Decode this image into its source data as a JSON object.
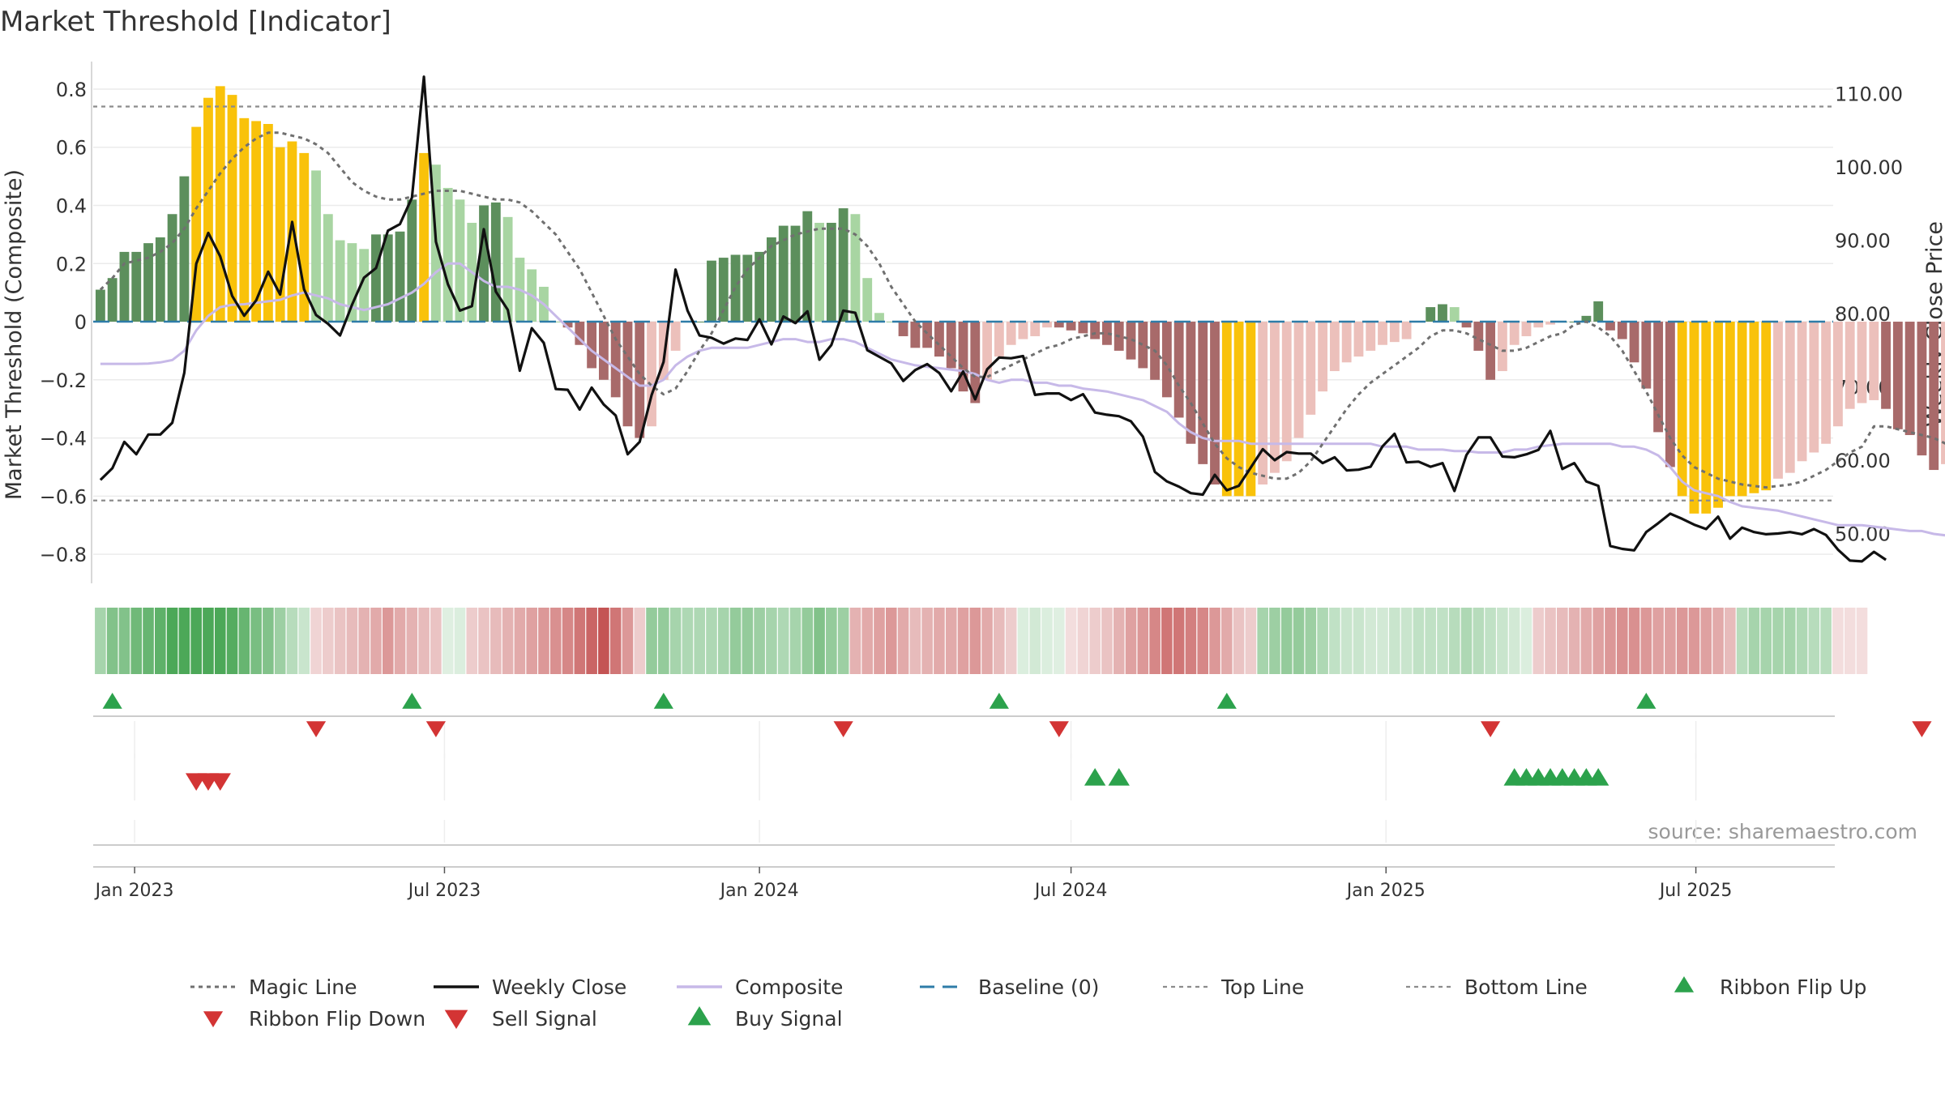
{
  "chart_data": {
    "type": "bar",
    "title": "Market Threshold [Indicator]",
    "ylabel": "Market Threshold (Composite)",
    "y2label": "Weekly Close Price",
    "source": "source: sharemaestro.com",
    "ylim": [
      -0.9,
      0.85
    ],
    "y2lim": [
      43.2,
      112.6
    ],
    "yticks": [
      {
        "v": 0.8,
        "t": "0.8"
      },
      {
        "v": 0.6,
        "t": "0.6"
      },
      {
        "v": 0.4,
        "t": "0.4"
      },
      {
        "v": 0.2,
        "t": "0.2"
      },
      {
        "v": 0,
        "t": "0"
      },
      {
        "v": -0.2,
        "t": "−0.2"
      },
      {
        "v": -0.4,
        "t": "−0.4"
      },
      {
        "v": -0.6,
        "t": "−0.6"
      },
      {
        "v": -0.8,
        "t": "−0.8"
      }
    ],
    "y2ticks": [
      {
        "v": 110,
        "t": "110.00"
      },
      {
        "v": 100,
        "t": "100.00"
      },
      {
        "v": 90,
        "t": "90.00"
      },
      {
        "v": 80,
        "t": "80.00"
      },
      {
        "v": 70,
        "t": "70.00"
      },
      {
        "v": 60,
        "t": "60.00"
      },
      {
        "v": 50,
        "t": "50.00"
      }
    ],
    "x_start": "2022-12-12",
    "x_end": "2025-09-15",
    "xticks": [
      {
        "date": "2023-01-01",
        "label": "Jan 2023"
      },
      {
        "date": "2023-07-01",
        "label": "Jul 2023"
      },
      {
        "date": "2024-01-01",
        "label": "Jan 2024"
      },
      {
        "date": "2024-07-01",
        "label": "Jul 2024"
      },
      {
        "date": "2025-01-01",
        "label": "Jan 2025"
      },
      {
        "date": "2025-07-01",
        "label": "Jul 2025"
      }
    ],
    "lines": {
      "top": 0.74,
      "bottom": -0.615,
      "baseline": 0
    },
    "colors": {
      "green_dark": "#5c8f5c",
      "green_light": "#a8d5a2",
      "red_dark": "#a86a6a",
      "red_light": "#ecc0bb",
      "extreme": "#f9c20a",
      "close": "#111111",
      "composite": "#c7b9e8",
      "magic": "#707070",
      "baseline": "#2e7ca8",
      "thresh": "#8c8c8c",
      "signal_up": "#2ca24c",
      "signal_down": "#d33434",
      "ribbon_up": "#2ca24c",
      "ribbon_down": "#d33434"
    },
    "composite_bars": [
      0.11,
      0.15,
      0.24,
      0.24,
      0.27,
      0.29,
      0.37,
      0.5,
      0.67,
      0.77,
      0.81,
      0.78,
      0.7,
      0.69,
      0.68,
      0.6,
      0.62,
      0.58,
      0.52,
      0.37,
      0.28,
      0.27,
      0.25,
      0.3,
      0.3,
      0.31,
      0.42,
      0.58,
      0.54,
      0.46,
      0.42,
      0.34,
      0.4,
      0.41,
      0.36,
      0.22,
      0.18,
      0.12,
      0.0,
      -0.02,
      -0.08,
      -0.16,
      -0.2,
      -0.26,
      -0.36,
      -0.4,
      -0.36,
      -0.2,
      -0.1,
      0.0,
      0.0,
      0.21,
      0.22,
      0.23,
      0.23,
      0.24,
      0.29,
      0.33,
      0.33,
      0.38,
      0.34,
      0.34,
      0.39,
      0.37,
      0.15,
      0.03,
      0.0,
      -0.05,
      -0.09,
      -0.09,
      -0.12,
      -0.16,
      -0.24,
      -0.28,
      -0.2,
      -0.12,
      -0.08,
      -0.06,
      -0.05,
      -0.02,
      -0.02,
      -0.03,
      -0.04,
      -0.06,
      -0.08,
      -0.1,
      -0.13,
      -0.16,
      -0.2,
      -0.26,
      -0.33,
      -0.42,
      -0.49,
      -0.56,
      -0.6,
      -0.6,
      -0.6,
      -0.56,
      -0.52,
      -0.48,
      -0.4,
      -0.32,
      -0.24,
      -0.17,
      -0.14,
      -0.12,
      -0.1,
      -0.08,
      -0.07,
      -0.06,
      0.0,
      0.05,
      0.06,
      0.05,
      -0.02,
      -0.1,
      -0.2,
      -0.17,
      -0.08,
      -0.05,
      -0.02,
      -0.01,
      0.0,
      0.0,
      0.02,
      0.07,
      -0.03,
      -0.06,
      -0.14,
      -0.23,
      -0.38,
      -0.5,
      -0.6,
      -0.66,
      -0.66,
      -0.64,
      -0.6,
      -0.6,
      -0.59,
      -0.58,
      -0.54,
      -0.52,
      -0.48,
      -0.45,
      -0.42,
      -0.36,
      -0.3,
      -0.28,
      -0.27,
      -0.3,
      -0.37,
      -0.39,
      -0.46,
      -0.51,
      -0.49,
      -0.54
    ],
    "composite_line": [
      -0.145,
      -0.145,
      -0.145,
      -0.145,
      -0.144,
      -0.14,
      -0.132,
      -0.1,
      -0.03,
      0.02,
      0.05,
      0.058,
      0.06,
      0.065,
      0.07,
      0.075,
      0.09,
      0.1,
      0.09,
      0.08,
      0.06,
      0.05,
      0.04,
      0.05,
      0.06,
      0.08,
      0.1,
      0.13,
      0.17,
      0.2,
      0.2,
      0.17,
      0.14,
      0.12,
      0.12,
      0.11,
      0.09,
      0.06,
      0.02,
      -0.02,
      -0.06,
      -0.1,
      -0.13,
      -0.16,
      -0.19,
      -0.22,
      -0.22,
      -0.2,
      -0.15,
      -0.12,
      -0.1,
      -0.09,
      -0.09,
      -0.09,
      -0.09,
      -0.08,
      -0.07,
      -0.06,
      -0.06,
      -0.07,
      -0.07,
      -0.06,
      -0.06,
      -0.07,
      -0.09,
      -0.11,
      -0.13,
      -0.14,
      -0.15,
      -0.155,
      -0.16,
      -0.165,
      -0.17,
      -0.18,
      -0.2,
      -0.21,
      -0.2,
      -0.2,
      -0.21,
      -0.21,
      -0.22,
      -0.22,
      -0.23,
      -0.235,
      -0.24,
      -0.25,
      -0.26,
      -0.27,
      -0.29,
      -0.31,
      -0.35,
      -0.38,
      -0.4,
      -0.41,
      -0.41,
      -0.41,
      -0.42,
      -0.42,
      -0.42,
      -0.42,
      -0.42,
      -0.42,
      -0.42,
      -0.42,
      -0.42,
      -0.42,
      -0.42,
      -0.43,
      -0.43,
      -0.43,
      -0.44,
      -0.44,
      -0.44,
      -0.445,
      -0.445,
      -0.45,
      -0.45,
      -0.45,
      -0.44,
      -0.44,
      -0.43,
      -0.425,
      -0.42,
      -0.42,
      -0.42,
      -0.42,
      -0.42,
      -0.43,
      -0.43,
      -0.44,
      -0.46,
      -0.5,
      -0.55,
      -0.58,
      -0.59,
      -0.6,
      -0.62,
      -0.635,
      -0.64,
      -0.645,
      -0.65,
      -0.66,
      -0.67,
      -0.68,
      -0.69,
      -0.7,
      -0.7,
      -0.7,
      -0.705,
      -0.71,
      -0.715,
      -0.72,
      -0.72,
      -0.73,
      -0.735,
      -0.74
    ],
    "magic_line": [
      0.11,
      0.15,
      0.2,
      0.21,
      0.22,
      0.24,
      0.27,
      0.32,
      0.39,
      0.45,
      0.51,
      0.56,
      0.6,
      0.63,
      0.65,
      0.65,
      0.64,
      0.63,
      0.61,
      0.58,
      0.53,
      0.48,
      0.45,
      0.43,
      0.42,
      0.42,
      0.43,
      0.44,
      0.45,
      0.45,
      0.45,
      0.44,
      0.43,
      0.42,
      0.42,
      0.41,
      0.38,
      0.34,
      0.3,
      0.24,
      0.18,
      0.1,
      0.02,
      -0.06,
      -0.12,
      -0.18,
      -0.22,
      -0.25,
      -0.23,
      -0.17,
      -0.1,
      -0.04,
      0.04,
      0.12,
      0.18,
      0.22,
      0.26,
      0.28,
      0.3,
      0.31,
      0.32,
      0.32,
      0.32,
      0.3,
      0.26,
      0.2,
      0.12,
      0.06,
      0.0,
      -0.04,
      -0.08,
      -0.12,
      -0.16,
      -0.19,
      -0.19,
      -0.17,
      -0.15,
      -0.13,
      -0.11,
      -0.09,
      -0.08,
      -0.06,
      -0.05,
      -0.04,
      -0.04,
      -0.05,
      -0.06,
      -0.08,
      -0.1,
      -0.15,
      -0.22,
      -0.28,
      -0.35,
      -0.42,
      -0.47,
      -0.5,
      -0.52,
      -0.53,
      -0.54,
      -0.54,
      -0.52,
      -0.48,
      -0.42,
      -0.36,
      -0.3,
      -0.25,
      -0.21,
      -0.18,
      -0.15,
      -0.12,
      -0.09,
      -0.05,
      -0.03,
      -0.03,
      -0.04,
      -0.06,
      -0.08,
      -0.1,
      -0.1,
      -0.09,
      -0.07,
      -0.05,
      -0.04,
      -0.01,
      0.0,
      -0.02,
      -0.05,
      -0.1,
      -0.17,
      -0.24,
      -0.32,
      -0.4,
      -0.46,
      -0.5,
      -0.52,
      -0.54,
      -0.55,
      -0.56,
      -0.565,
      -0.57,
      -0.565,
      -0.56,
      -0.55,
      -0.53,
      -0.51,
      -0.48,
      -0.45,
      -0.43,
      -0.36,
      -0.36,
      -0.37,
      -0.38,
      -0.39,
      -0.4,
      -0.42,
      -0.43
    ],
    "weekly_close": [
      57.3,
      58.9,
      62.5,
      60.8,
      63.5,
      63.5,
      65.1,
      71.9,
      86.8,
      91.0,
      87.8,
      82.4,
      79.7,
      81.8,
      85.7,
      82.6,
      92.5,
      83.3,
      79.8,
      78.6,
      77.0,
      81.2,
      84.9,
      86.2,
      91.3,
      92.2,
      95.8,
      112.3,
      89.8,
      84.0,
      80.4,
      81.0,
      91.5,
      83.0,
      80.5,
      72.2,
      78.0,
      76.0,
      69.7,
      69.6,
      66.9,
      69.9,
      67.6,
      66.1,
      60.8,
      62.5,
      68.9,
      73.4,
      86.0,
      80.4,
      77.0,
      76.7,
      75.9,
      76.6,
      76.4,
      79.2,
      75.8,
      79.6,
      78.7,
      80.3,
      73.7,
      75.7,
      80.4,
      80.1,
      75.0,
      74.1,
      73.2,
      70.8,
      72.3,
      73.1,
      71.9,
      69.4,
      72.1,
      68.3,
      72.4,
      74.0,
      73.9,
      74.2,
      68.9,
      69.1,
      69.1,
      68.2,
      69.0,
      66.5,
      66.2,
      66.0,
      65.3,
      63.2,
      58.4,
      57.1,
      56.4,
      55.5,
      55.3,
      58.0,
      55.9,
      56.5,
      59.0,
      61.5,
      60.0,
      61.1,
      60.9,
      60.9,
      59.6,
      60.4,
      58.6,
      58.7,
      59.1,
      61.9,
      63.6,
      59.7,
      59.8,
      59.1,
      59.6,
      55.8,
      60.7,
      63.1,
      63.1,
      60.5,
      60.4,
      60.8,
      61.4,
      64.0,
      58.8,
      59.6,
      57.1,
      56.5,
      48.3,
      47.9,
      47.7,
      50.2,
      51.4,
      52.7,
      52.0,
      51.2,
      50.6,
      52.3,
      49.3,
      50.8,
      50.2,
      49.9,
      50.0,
      50.2,
      49.9,
      50.6,
      49.8,
      47.8,
      46.3,
      46.2,
      47.5,
      46.4
    ],
    "ribbon": [
      0.5,
      0.7,
      0.7,
      0.8,
      0.85,
      0.9,
      1.0,
      1.0,
      1.0,
      1.0,
      1.0,
      0.95,
      0.85,
      0.75,
      0.7,
      0.55,
      0.4,
      0.3,
      -0.25,
      -0.3,
      -0.35,
      -0.4,
      -0.45,
      -0.5,
      -0.6,
      -0.5,
      -0.45,
      -0.4,
      -0.35,
      0.15,
      0.2,
      -0.3,
      -0.35,
      -0.4,
      -0.45,
      -0.5,
      -0.55,
      -0.6,
      -0.65,
      -0.7,
      -0.8,
      -0.9,
      -1.0,
      -0.8,
      -0.6,
      -0.3,
      0.6,
      0.6,
      0.5,
      0.45,
      0.45,
      0.45,
      0.5,
      0.6,
      0.6,
      0.55,
      0.5,
      0.45,
      0.5,
      0.6,
      0.7,
      0.6,
      0.55,
      -0.45,
      -0.5,
      -0.55,
      -0.6,
      -0.5,
      -0.4,
      -0.45,
      -0.5,
      -0.5,
      -0.55,
      -0.6,
      -0.5,
      -0.4,
      -0.3,
      0.2,
      0.25,
      0.2,
      0.15,
      -0.2,
      -0.25,
      -0.3,
      -0.35,
      -0.45,
      -0.55,
      -0.6,
      -0.7,
      -0.8,
      -0.8,
      -0.75,
      -0.7,
      -0.6,
      -0.5,
      -0.35,
      -0.3,
      0.5,
      0.55,
      0.6,
      0.6,
      0.55,
      0.45,
      0.35,
      0.3,
      0.3,
      0.25,
      0.25,
      0.3,
      0.3,
      0.35,
      0.35,
      0.35,
      0.4,
      0.45,
      0.4,
      0.35,
      0.3,
      0.25,
      0.2,
      -0.3,
      -0.35,
      -0.4,
      -0.45,
      -0.5,
      -0.55,
      -0.6,
      -0.65,
      -0.65,
      -0.6,
      -0.55,
      -0.55,
      -0.6,
      -0.6,
      -0.55,
      -0.5,
      -0.4,
      0.4,
      0.5,
      0.5,
      0.5,
      0.5,
      0.45,
      0.4,
      0.4,
      -0.2,
      -0.2,
      -0.2
    ],
    "ribbon_flips_up": [
      1,
      26,
      47,
      75,
      94,
      129
    ],
    "ribbon_flips_down": [
      18,
      28,
      62,
      80,
      116,
      152
    ],
    "sell_signals": [
      8,
      9,
      10
    ],
    "buy_signals": [
      83,
      85,
      118,
      119,
      120,
      121,
      122,
      123,
      124,
      125
    ],
    "legend": [
      {
        "key": "magic",
        "label": "Magic Line"
      },
      {
        "key": "close",
        "label": "Weekly Close"
      },
      {
        "key": "composite",
        "label": "Composite"
      },
      {
        "key": "baseline",
        "label": "Baseline (0)"
      },
      {
        "key": "top",
        "label": "Top Line"
      },
      {
        "key": "bottom",
        "label": "Bottom Line"
      },
      {
        "key": "ribbon_up",
        "label": "Ribbon Flip Up"
      },
      {
        "key": "ribbon_down",
        "label": "Ribbon Flip Down"
      },
      {
        "key": "sell",
        "label": "Sell Signal"
      },
      {
        "key": "buy",
        "label": "Buy Signal"
      }
    ]
  }
}
